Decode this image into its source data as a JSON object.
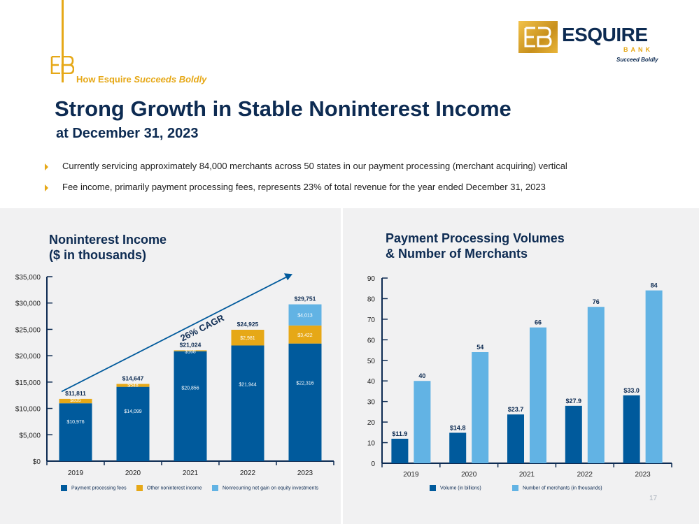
{
  "header": {
    "tagline_prefix": "How Esquire",
    "tagline_emph": "Succeeds Boldly",
    "logo_word": "ESQUIRE",
    "logo_bank": "BANK",
    "logo_tagline": "Succeed Boldly",
    "title": "Strong Growth in Stable Noninterest Income",
    "subtitle": "at December 31, 2023"
  },
  "bullets": [
    "Currently servicing approximately 84,000 merchants across 50 states in our payment processing (merchant acquiring) vertical",
    "Fee income, primarily payment processing fees, represents 23% of total revenue for the year ended December 31, 2023"
  ],
  "colors": {
    "navy": "#0d2b52",
    "dark_blue": "#005a9c",
    "gold": "#e6a817",
    "light_blue": "#62b3e4",
    "panel_bg": "#f1f1f2"
  },
  "page_number": "17",
  "chart_data": [
    {
      "type": "bar",
      "stacked": true,
      "title_line1": "Noninterest Income",
      "title_line2": "($ in thousands)",
      "categories": [
        "2019",
        "2020",
        "2021",
        "2022",
        "2023"
      ],
      "series": [
        {
          "name": "Payment processing fees",
          "color": "#005a9c",
          "values": [
            10976,
            14099,
            20856,
            21944,
            22316
          ],
          "labels": [
            "$10,976",
            "$14,099",
            "$20,856",
            "$21,944",
            "$22,316"
          ]
        },
        {
          "name": "Other noninterest income",
          "color": "#e6a817",
          "values": [
            835,
            548,
            168,
            2981,
            3422
          ],
          "labels": [
            "$835",
            "$548",
            "$168",
            "$2,981",
            "$3,422"
          ]
        },
        {
          "name": "Nonrecurring net gain on equity investments",
          "color": "#62b3e4",
          "values": [
            0,
            0,
            0,
            0,
            4013
          ],
          "labels": [
            "",
            "",
            "",
            "",
            "$4,013"
          ]
        }
      ],
      "totals": [
        "$11,811",
        "$14,647",
        "$21,024",
        "$24,925",
        "$29,751"
      ],
      "yticks": [
        "$0",
        "$5,000",
        "$10,000",
        "$15,000",
        "$20,000",
        "$25,000",
        "$30,000",
        "$35,000"
      ],
      "ylim": [
        0,
        35000
      ],
      "annotation": "26% CAGR",
      "legend_position": "bottom"
    },
    {
      "type": "bar",
      "stacked": false,
      "title_line1": "Payment Processing Volumes",
      "title_line2": "& Number of Merchants",
      "categories": [
        "2019",
        "2020",
        "2021",
        "2022",
        "2023"
      ],
      "series": [
        {
          "name": "Volume (in billions)",
          "color": "#005a9c",
          "values": [
            11.9,
            14.8,
            23.7,
            27.9,
            33.0
          ],
          "labels": [
            "$11.9",
            "$14.8",
            "$23.7",
            "$27.9",
            "$33.0"
          ]
        },
        {
          "name": "Number of merchants (in thousands)",
          "color": "#62b3e4",
          "values": [
            40,
            54,
            66,
            76,
            84
          ],
          "labels": [
            "40",
            "54",
            "66",
            "76",
            "84"
          ]
        }
      ],
      "yticks": [
        "0",
        "10",
        "20",
        "30",
        "40",
        "50",
        "60",
        "70",
        "80",
        "90"
      ],
      "ylim": [
        0,
        90
      ],
      "legend_position": "bottom"
    }
  ]
}
